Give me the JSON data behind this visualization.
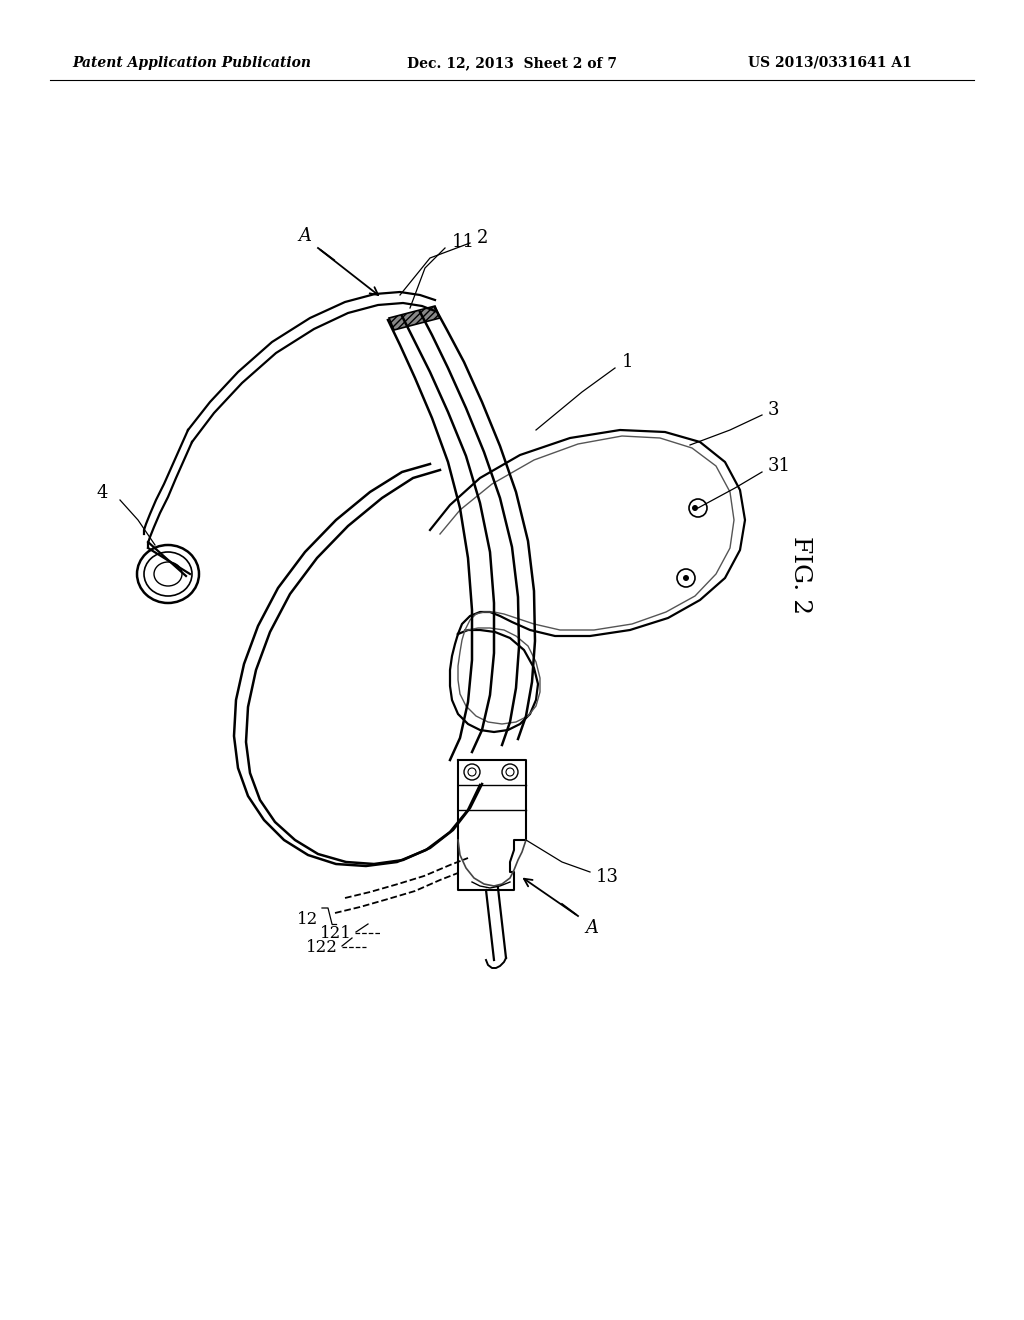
{
  "bg_color": "#ffffff",
  "line_color": "#000000",
  "header_left": "Patent Application Publication",
  "header_mid": "Dec. 12, 2013  Sheet 2 of 7",
  "header_right": "US 2013/0331641 A1",
  "fig_label": "FIG. 2",
  "label_fontsize": 13,
  "header_fontsize": 10,
  "lw_main": 1.8,
  "lw_thin": 1.2,
  "lw_detail": 0.9
}
